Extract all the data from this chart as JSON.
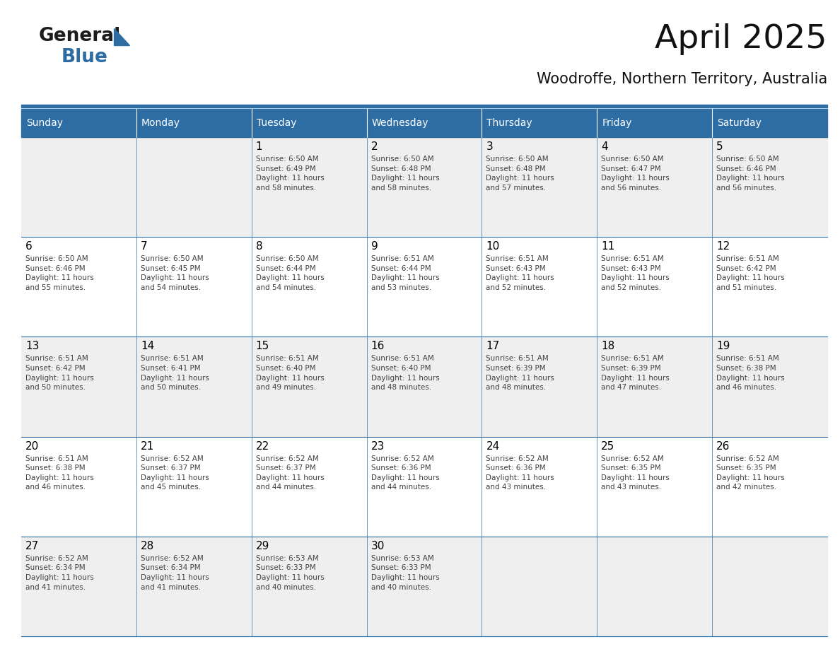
{
  "title": "April 2025",
  "subtitle": "Woodroffe, Northern Territory, Australia",
  "header_bg_color": "#2E6DA4",
  "header_text_color": "#FFFFFF",
  "cell_bg_even": "#EFEFEF",
  "cell_bg_odd": "#FFFFFF",
  "text_color": "#404040",
  "day_number_color": "#000000",
  "line_color": "#2E6DA4",
  "days_of_week": [
    "Sunday",
    "Monday",
    "Tuesday",
    "Wednesday",
    "Thursday",
    "Friday",
    "Saturday"
  ],
  "weeks": [
    [
      {
        "day": "",
        "info": ""
      },
      {
        "day": "",
        "info": ""
      },
      {
        "day": "1",
        "info": "Sunrise: 6:50 AM\nSunset: 6:49 PM\nDaylight: 11 hours\nand 58 minutes."
      },
      {
        "day": "2",
        "info": "Sunrise: 6:50 AM\nSunset: 6:48 PM\nDaylight: 11 hours\nand 58 minutes."
      },
      {
        "day": "3",
        "info": "Sunrise: 6:50 AM\nSunset: 6:48 PM\nDaylight: 11 hours\nand 57 minutes."
      },
      {
        "day": "4",
        "info": "Sunrise: 6:50 AM\nSunset: 6:47 PM\nDaylight: 11 hours\nand 56 minutes."
      },
      {
        "day": "5",
        "info": "Sunrise: 6:50 AM\nSunset: 6:46 PM\nDaylight: 11 hours\nand 56 minutes."
      }
    ],
    [
      {
        "day": "6",
        "info": "Sunrise: 6:50 AM\nSunset: 6:46 PM\nDaylight: 11 hours\nand 55 minutes."
      },
      {
        "day": "7",
        "info": "Sunrise: 6:50 AM\nSunset: 6:45 PM\nDaylight: 11 hours\nand 54 minutes."
      },
      {
        "day": "8",
        "info": "Sunrise: 6:50 AM\nSunset: 6:44 PM\nDaylight: 11 hours\nand 54 minutes."
      },
      {
        "day": "9",
        "info": "Sunrise: 6:51 AM\nSunset: 6:44 PM\nDaylight: 11 hours\nand 53 minutes."
      },
      {
        "day": "10",
        "info": "Sunrise: 6:51 AM\nSunset: 6:43 PM\nDaylight: 11 hours\nand 52 minutes."
      },
      {
        "day": "11",
        "info": "Sunrise: 6:51 AM\nSunset: 6:43 PM\nDaylight: 11 hours\nand 52 minutes."
      },
      {
        "day": "12",
        "info": "Sunrise: 6:51 AM\nSunset: 6:42 PM\nDaylight: 11 hours\nand 51 minutes."
      }
    ],
    [
      {
        "day": "13",
        "info": "Sunrise: 6:51 AM\nSunset: 6:42 PM\nDaylight: 11 hours\nand 50 minutes."
      },
      {
        "day": "14",
        "info": "Sunrise: 6:51 AM\nSunset: 6:41 PM\nDaylight: 11 hours\nand 50 minutes."
      },
      {
        "day": "15",
        "info": "Sunrise: 6:51 AM\nSunset: 6:40 PM\nDaylight: 11 hours\nand 49 minutes."
      },
      {
        "day": "16",
        "info": "Sunrise: 6:51 AM\nSunset: 6:40 PM\nDaylight: 11 hours\nand 48 minutes."
      },
      {
        "day": "17",
        "info": "Sunrise: 6:51 AM\nSunset: 6:39 PM\nDaylight: 11 hours\nand 48 minutes."
      },
      {
        "day": "18",
        "info": "Sunrise: 6:51 AM\nSunset: 6:39 PM\nDaylight: 11 hours\nand 47 minutes."
      },
      {
        "day": "19",
        "info": "Sunrise: 6:51 AM\nSunset: 6:38 PM\nDaylight: 11 hours\nand 46 minutes."
      }
    ],
    [
      {
        "day": "20",
        "info": "Sunrise: 6:51 AM\nSunset: 6:38 PM\nDaylight: 11 hours\nand 46 minutes."
      },
      {
        "day": "21",
        "info": "Sunrise: 6:52 AM\nSunset: 6:37 PM\nDaylight: 11 hours\nand 45 minutes."
      },
      {
        "day": "22",
        "info": "Sunrise: 6:52 AM\nSunset: 6:37 PM\nDaylight: 11 hours\nand 44 minutes."
      },
      {
        "day": "23",
        "info": "Sunrise: 6:52 AM\nSunset: 6:36 PM\nDaylight: 11 hours\nand 44 minutes."
      },
      {
        "day": "24",
        "info": "Sunrise: 6:52 AM\nSunset: 6:36 PM\nDaylight: 11 hours\nand 43 minutes."
      },
      {
        "day": "25",
        "info": "Sunrise: 6:52 AM\nSunset: 6:35 PM\nDaylight: 11 hours\nand 43 minutes."
      },
      {
        "day": "26",
        "info": "Sunrise: 6:52 AM\nSunset: 6:35 PM\nDaylight: 11 hours\nand 42 minutes."
      }
    ],
    [
      {
        "day": "27",
        "info": "Sunrise: 6:52 AM\nSunset: 6:34 PM\nDaylight: 11 hours\nand 41 minutes."
      },
      {
        "day": "28",
        "info": "Sunrise: 6:52 AM\nSunset: 6:34 PM\nDaylight: 11 hours\nand 41 minutes."
      },
      {
        "day": "29",
        "info": "Sunrise: 6:53 AM\nSunset: 6:33 PM\nDaylight: 11 hours\nand 40 minutes."
      },
      {
        "day": "30",
        "info": "Sunrise: 6:53 AM\nSunset: 6:33 PM\nDaylight: 11 hours\nand 40 minutes."
      },
      {
        "day": "",
        "info": ""
      },
      {
        "day": "",
        "info": ""
      },
      {
        "day": "",
        "info": ""
      }
    ]
  ],
  "fig_width": 11.88,
  "fig_height": 9.18,
  "dpi": 100
}
